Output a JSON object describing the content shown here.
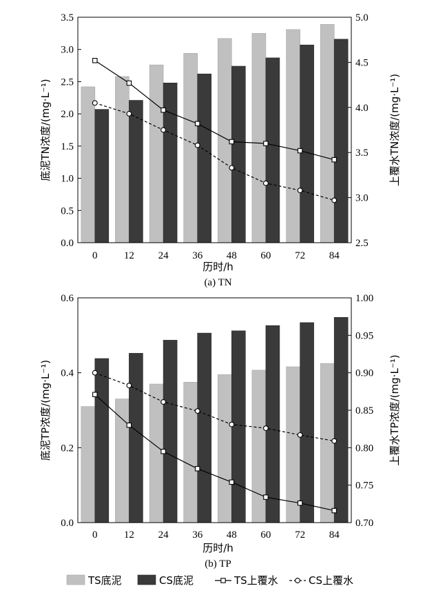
{
  "chart_data": [
    {
      "type": "bar",
      "caption": "(a) TN",
      "xlabel": "历时/h",
      "ylabel": "底泥TN浓度/(mg·L⁻¹)",
      "y2label": "上覆水TN浓度/(mg·L⁻¹)",
      "categories": [
        "0",
        "12",
        "24",
        "36",
        "48",
        "60",
        "72",
        "84"
      ],
      "ylim": [
        0,
        3.5
      ],
      "yticks": [
        "0.0",
        "0.5",
        "1.0",
        "1.5",
        "2.0",
        "2.5",
        "3.0",
        "3.5"
      ],
      "y2lim": [
        2.5,
        5.0
      ],
      "y2ticks": [
        "2.5",
        "3.0",
        "3.5",
        "4.0",
        "4.5",
        "5.0"
      ],
      "series": [
        {
          "name": "TS底泥",
          "kind": "bar",
          "axis": "left",
          "color": "#c0c0c0",
          "values": [
            2.42,
            2.58,
            2.76,
            2.94,
            3.17,
            3.25,
            3.31,
            3.39
          ]
        },
        {
          "name": "CS底泥",
          "kind": "bar",
          "axis": "left",
          "color": "#3a3a3a",
          "values": [
            2.07,
            2.21,
            2.48,
            2.62,
            2.74,
            2.87,
            3.07,
            3.16
          ]
        },
        {
          "name": "TS上覆水",
          "kind": "line",
          "axis": "right",
          "marker": "square",
          "dash": "solid",
          "values": [
            4.52,
            4.27,
            3.97,
            3.82,
            3.62,
            3.6,
            3.52,
            3.42
          ]
        },
        {
          "name": "CS上覆水",
          "kind": "line",
          "axis": "right",
          "marker": "circle",
          "dash": "dashed",
          "values": [
            4.05,
            3.93,
            3.75,
            3.58,
            3.33,
            3.16,
            3.08,
            2.97
          ]
        }
      ]
    },
    {
      "type": "bar",
      "caption": "(b) TP",
      "xlabel": "历时/h",
      "ylabel": "底泥TP浓度/(mg·L⁻¹)",
      "y2label": "上覆水TP浓度/(mg·L⁻¹)",
      "categories": [
        "0",
        "12",
        "24",
        "36",
        "48",
        "60",
        "72",
        "84"
      ],
      "ylim": [
        0,
        0.6
      ],
      "yticks": [
        "0.0",
        "0.2",
        "0.4",
        "0.6"
      ],
      "y2lim": [
        0.7,
        1.0
      ],
      "y2ticks": [
        "0.70",
        "0.75",
        "0.80",
        "0.85",
        "0.90",
        "0.95",
        "1.00"
      ],
      "series": [
        {
          "name": "TS底泥",
          "kind": "bar",
          "axis": "left",
          "color": "#c0c0c0",
          "values": [
            0.31,
            0.33,
            0.37,
            0.375,
            0.395,
            0.407,
            0.416,
            0.425
          ]
        },
        {
          "name": "CS底泥",
          "kind": "bar",
          "axis": "left",
          "color": "#3a3a3a",
          "values": [
            0.438,
            0.452,
            0.487,
            0.506,
            0.512,
            0.526,
            0.534,
            0.548
          ]
        },
        {
          "name": "TS上覆水",
          "kind": "line",
          "axis": "right",
          "marker": "square",
          "dash": "solid",
          "values": [
            0.871,
            0.83,
            0.795,
            0.772,
            0.754,
            0.734,
            0.726,
            0.716
          ]
        },
        {
          "name": "CS上覆水",
          "kind": "line",
          "axis": "right",
          "marker": "circle",
          "dash": "dashed",
          "values": [
            0.9,
            0.883,
            0.861,
            0.849,
            0.831,
            0.826,
            0.817,
            0.809
          ]
        }
      ]
    }
  ],
  "legend": {
    "position": "bottom",
    "items": [
      {
        "label": "TS底泥",
        "kind": "bar",
        "color": "#c0c0c0"
      },
      {
        "label": "CS底泥",
        "kind": "bar",
        "color": "#3a3a3a"
      },
      {
        "label": "TS上覆水",
        "kind": "line",
        "marker": "square",
        "dash": "solid"
      },
      {
        "label": "CS上覆水",
        "kind": "line",
        "marker": "circle",
        "dash": "dashed"
      }
    ]
  }
}
